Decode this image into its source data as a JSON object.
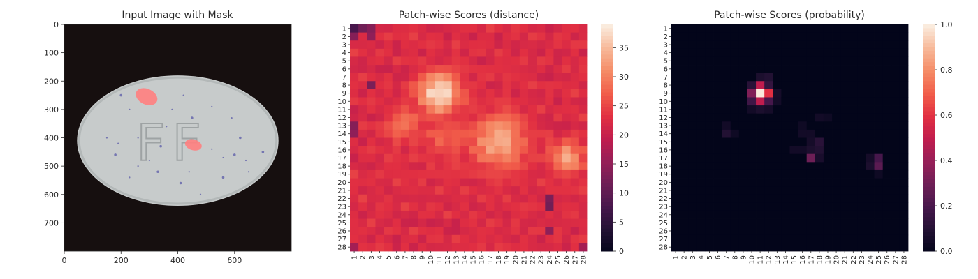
{
  "chart_data": [
    {
      "type": "image",
      "title": "Input Image with Mask",
      "xlim": [
        0,
        800
      ],
      "ylim": [
        800,
        0
      ],
      "xticks": [
        0,
        200,
        400,
        600
      ],
      "yticks": [
        0,
        100,
        200,
        300,
        400,
        500,
        600,
        700
      ],
      "image": {
        "background": "#160f0f",
        "object": {
          "shape": "ellipse",
          "cx": 400,
          "cy": 410,
          "rx": 355,
          "ry": 230,
          "color": "#c7cbcb"
        },
        "engraving": "FF",
        "mask_regions": [
          {
            "x": 290,
            "y": 255,
            "w": 80,
            "h": 55,
            "rotate": 25
          },
          {
            "x": 455,
            "y": 425,
            "w": 60,
            "h": 38,
            "rotate": 15
          }
        ],
        "mask_color": "#ff8080"
      }
    },
    {
      "type": "heatmap",
      "title": "Patch-wise Scores (distance)",
      "grid_size": 28,
      "tick_labels": [
        "1",
        "2",
        "3",
        "4",
        "5",
        "6",
        "7",
        "8",
        "9",
        "10",
        "11",
        "12",
        "13",
        "14",
        "15",
        "16",
        "17",
        "18",
        "19",
        "20",
        "21",
        "22",
        "23",
        "24",
        "25",
        "26",
        "27",
        "28"
      ],
      "colorbar": {
        "min": 0,
        "max": 39,
        "ticks": [
          0,
          5,
          10,
          15,
          20,
          25,
          30,
          35
        ]
      },
      "colormap": "rocket",
      "base_value": 22,
      "hotspots": [
        {
          "row": 9,
          "col": 11,
          "peak": 38.5,
          "sigma": 1.8
        },
        {
          "row": 15,
          "col": 18,
          "peak": 34,
          "sigma": 2.3
        },
        {
          "row": 17,
          "col": 26,
          "peak": 33,
          "sigma": 1.5
        },
        {
          "row": 13,
          "col": 7,
          "peak": 29,
          "sigma": 1.5
        },
        {
          "row": 14,
          "col": 12,
          "peak": 28,
          "sigma": 2.0
        }
      ],
      "cold_cells": [
        {
          "row": 1,
          "col": 1,
          "value": 8
        },
        {
          "row": 1,
          "col": 2,
          "value": 12
        },
        {
          "row": 1,
          "col": 3,
          "value": 14
        },
        {
          "row": 2,
          "col": 1,
          "value": 14
        },
        {
          "row": 2,
          "col": 3,
          "value": 15
        },
        {
          "row": 8,
          "col": 3,
          "value": 13
        },
        {
          "row": 13,
          "col": 1,
          "value": 14
        },
        {
          "row": 14,
          "col": 1,
          "value": 15
        },
        {
          "row": 22,
          "col": 24,
          "value": 13
        },
        {
          "row": 23,
          "col": 24,
          "value": 12
        },
        {
          "row": 26,
          "col": 24,
          "value": 15
        },
        {
          "row": 28,
          "col": 1,
          "value": 17
        },
        {
          "row": 28,
          "col": 28,
          "value": 17
        }
      ]
    },
    {
      "type": "heatmap",
      "title": "Patch-wise Scores (probability)",
      "grid_size": 28,
      "tick_labels": [
        "1",
        "2",
        "3",
        "4",
        "5",
        "6",
        "7",
        "8",
        "9",
        "10",
        "11",
        "12",
        "13",
        "14",
        "15",
        "16",
        "17",
        "18",
        "19",
        "20",
        "21",
        "22",
        "23",
        "24",
        "25",
        "26",
        "27",
        "28"
      ],
      "colorbar": {
        "min": 0,
        "max": 1,
        "ticks": [
          "0.0",
          "0.2",
          "0.4",
          "0.6",
          "0.8",
          "1.0"
        ]
      },
      "colormap": "rocket",
      "cells": [
        {
          "row": 9,
          "col": 11,
          "value": 1.0
        },
        {
          "row": 8,
          "col": 11,
          "value": 0.5
        },
        {
          "row": 10,
          "col": 11,
          "value": 0.5
        },
        {
          "row": 9,
          "col": 10,
          "value": 0.35
        },
        {
          "row": 9,
          "col": 12,
          "value": 0.6
        },
        {
          "row": 8,
          "col": 10,
          "value": 0.12
        },
        {
          "row": 8,
          "col": 12,
          "value": 0.15
        },
        {
          "row": 10,
          "col": 10,
          "value": 0.18
        },
        {
          "row": 10,
          "col": 12,
          "value": 0.2
        },
        {
          "row": 7,
          "col": 11,
          "value": 0.08
        },
        {
          "row": 7,
          "col": 12,
          "value": 0.1
        },
        {
          "row": 11,
          "col": 11,
          "value": 0.08
        },
        {
          "row": 11,
          "col": 12,
          "value": 0.06
        },
        {
          "row": 11,
          "col": 10,
          "value": 0.05
        },
        {
          "row": 9,
          "col": 13,
          "value": 0.06
        },
        {
          "row": 10,
          "col": 13,
          "value": 0.05
        },
        {
          "row": 17,
          "col": 17,
          "value": 0.3
        },
        {
          "row": 16,
          "col": 17,
          "value": 0.08
        },
        {
          "row": 15,
          "col": 18,
          "value": 0.12
        },
        {
          "row": 16,
          "col": 18,
          "value": 0.1
        },
        {
          "row": 15,
          "col": 17,
          "value": 0.06
        },
        {
          "row": 17,
          "col": 18,
          "value": 0.07
        },
        {
          "row": 14,
          "col": 16,
          "value": 0.05
        },
        {
          "row": 16,
          "col": 16,
          "value": 0.05
        },
        {
          "row": 16,
          "col": 15,
          "value": 0.05
        },
        {
          "row": 14,
          "col": 17,
          "value": 0.05
        },
        {
          "row": 17,
          "col": 25,
          "value": 0.2
        },
        {
          "row": 18,
          "col": 25,
          "value": 0.25
        },
        {
          "row": 18,
          "col": 24,
          "value": 0.08
        },
        {
          "row": 17,
          "col": 24,
          "value": 0.06
        },
        {
          "row": 14,
          "col": 7,
          "value": 0.1
        },
        {
          "row": 13,
          "col": 7,
          "value": 0.05
        },
        {
          "row": 14,
          "col": 8,
          "value": 0.04
        },
        {
          "row": 12,
          "col": 18,
          "value": 0.05
        },
        {
          "row": 12,
          "col": 19,
          "value": 0.04
        },
        {
          "row": 13,
          "col": 16,
          "value": 0.04
        },
        {
          "row": 19,
          "col": 25,
          "value": 0.04
        }
      ]
    }
  ]
}
